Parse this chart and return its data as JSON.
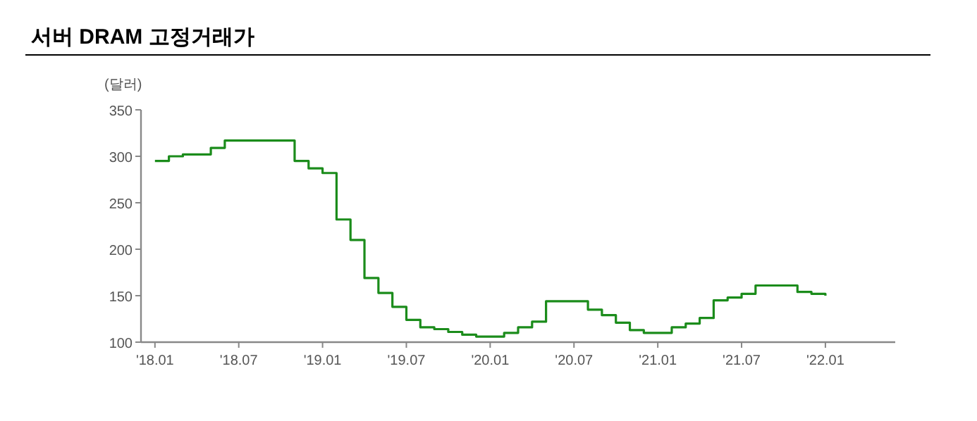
{
  "chart_data": {
    "type": "step",
    "title": "서버 DRAM 고정거래가",
    "ylabel": "(달러)",
    "color": "#1b8c1b",
    "marker": "none",
    "line_style": "solid",
    "grid": false,
    "x": [
      "2018-01",
      "2018-02",
      "2018-03",
      "2018-04",
      "2018-05",
      "2018-06",
      "2018-07",
      "2018-08",
      "2018-09",
      "2018-10",
      "2018-11",
      "2018-12",
      "2019-01",
      "2019-02",
      "2019-03",
      "2019-04",
      "2019-05",
      "2019-06",
      "2019-07",
      "2019-08",
      "2019-09",
      "2019-10",
      "2019-11",
      "2019-12",
      "2020-01",
      "2020-02",
      "2020-03",
      "2020-04",
      "2020-05",
      "2020-06",
      "2020-07",
      "2020-08",
      "2020-09",
      "2020-10",
      "2020-11",
      "2020-12",
      "2021-01",
      "2021-02",
      "2021-03",
      "2021-04",
      "2021-05",
      "2021-06",
      "2021-07",
      "2021-08",
      "2021-09",
      "2021-10",
      "2021-11",
      "2021-12",
      "2022-01"
    ],
    "values": [
      295,
      300,
      302,
      302,
      309,
      317,
      317,
      317,
      317,
      317,
      295,
      287,
      282,
      232,
      210,
      169,
      153,
      138,
      124,
      116,
      114,
      111,
      108,
      106,
      106,
      110,
      116,
      122,
      144,
      144,
      144,
      135,
      129,
      121,
      113,
      110,
      110,
      116,
      120,
      126,
      145,
      148,
      152,
      161,
      161,
      161,
      154,
      152,
      150
    ],
    "xlim": [
      "2017-12",
      "2022-06"
    ],
    "xticks": [
      {
        "value": "2018-01",
        "label": "'18.01"
      },
      {
        "value": "2018-07",
        "label": "'18.07"
      },
      {
        "value": "2019-01",
        "label": "'19.01"
      },
      {
        "value": "2019-07",
        "label": "'19.07"
      },
      {
        "value": "2020-01",
        "label": "'20.01"
      },
      {
        "value": "2020-07",
        "label": "'20.07"
      },
      {
        "value": "2021-01",
        "label": "'21.01"
      },
      {
        "value": "2021-07",
        "label": "'21.07"
      },
      {
        "value": "2022-01",
        "label": "'22.01"
      }
    ],
    "ylim": [
      100,
      350
    ],
    "yticks": [
      100,
      150,
      200,
      250,
      300,
      350
    ]
  }
}
